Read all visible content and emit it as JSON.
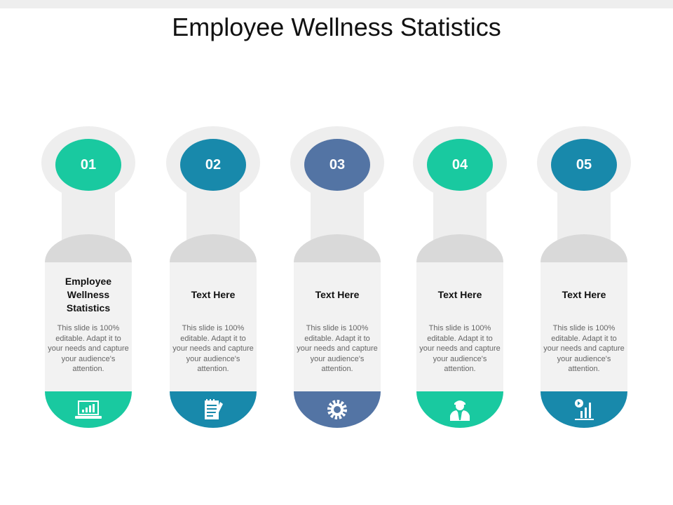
{
  "title": "Employee Wellness Statistics",
  "steps": [
    {
      "number": "01",
      "heading": "Employee Wellness Statistics",
      "text": "This slide is 100% editable. Adapt it to your needs and capture your audience's attention.",
      "color": "#19c9a0",
      "icon": "laptop-chart-icon"
    },
    {
      "number": "02",
      "heading": "Text Here",
      "text": "This slide is 100% editable. Adapt it to your needs and capture your audience's attention.",
      "color": "#1889ab",
      "icon": "notepad-pen-icon"
    },
    {
      "number": "03",
      "heading": "Text Here",
      "text": "This slide is 100% editable. Adapt it to your needs and capture your audience's attention.",
      "color": "#5374a4",
      "icon": "gear-icon"
    },
    {
      "number": "04",
      "heading": "Text Here",
      "text": "This slide is 100% editable. Adapt it to your needs and capture your audience's attention.",
      "color": "#19c9a0",
      "icon": "doctor-icon"
    },
    {
      "number": "05",
      "heading": "Text Here",
      "text": "This slide is 100% editable. Adapt it to your needs and capture your audience's attention.",
      "color": "#1889ab",
      "icon": "growth-chart-icon"
    }
  ]
}
